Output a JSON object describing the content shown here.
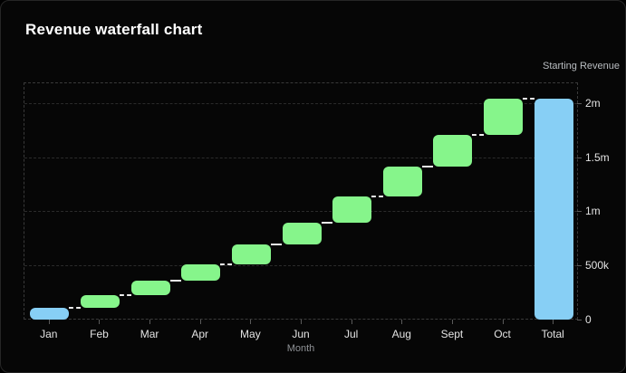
{
  "card": {
    "title": "Revenue waterfall chart"
  },
  "legend": {
    "label": "Starting Revenue"
  },
  "colors": {
    "background": "#060606",
    "card_border": "#262626",
    "increase_green": "#86F58B",
    "start_total_blue": "#87CFF5",
    "connector_white": "#EDEDED",
    "grid_gray": "#2B2B2B",
    "plot_border_gray": "#3A3A3A",
    "axis_text": "#E3E3E3",
    "muted_text": "#8F9296",
    "title_text": "#FFFFFF"
  },
  "chart_data": {
    "type": "waterfall",
    "title": "Revenue waterfall chart",
    "xlabel": "Month",
    "ylabel": "",
    "legend_entries": [
      "Starting Revenue"
    ],
    "legend_position": "top-right",
    "yaxis_side": "right",
    "grid": "horizontal-dashed",
    "categories": [
      "Jan",
      "Feb",
      "Mar",
      "Apr",
      "May",
      "Jun",
      "Jul",
      "Aug",
      "Sept",
      "Oct",
      "Total"
    ],
    "bars": [
      {
        "label": "Jan",
        "start": 0,
        "end": 110000,
        "delta": 110000,
        "kind": "start"
      },
      {
        "label": "Feb",
        "start": 110000,
        "end": 225000,
        "delta": 115000,
        "kind": "increase"
      },
      {
        "label": "Mar",
        "start": 225000,
        "end": 360000,
        "delta": 135000,
        "kind": "increase"
      },
      {
        "label": "Apr",
        "start": 360000,
        "end": 510000,
        "delta": 150000,
        "kind": "increase"
      },
      {
        "label": "May",
        "start": 510000,
        "end": 695000,
        "delta": 185000,
        "kind": "increase"
      },
      {
        "label": "Jun",
        "start": 695000,
        "end": 895000,
        "delta": 200000,
        "kind": "increase"
      },
      {
        "label": "Jul",
        "start": 895000,
        "end": 1135000,
        "delta": 240000,
        "kind": "increase"
      },
      {
        "label": "Aug",
        "start": 1135000,
        "end": 1410000,
        "delta": 275000,
        "kind": "increase"
      },
      {
        "label": "Sept",
        "start": 1410000,
        "end": 1705000,
        "delta": 295000,
        "kind": "increase"
      },
      {
        "label": "Oct",
        "start": 1705000,
        "end": 2040000,
        "delta": 335000,
        "kind": "increase"
      },
      {
        "label": "Total",
        "start": 0,
        "end": 2040000,
        "delta": 2040000,
        "kind": "total"
      }
    ],
    "y_ticks": [
      {
        "value": 0,
        "label": "0"
      },
      {
        "value": 500000,
        "label": "500k"
      },
      {
        "value": 1000000,
        "label": "1m"
      },
      {
        "value": 1500000,
        "label": "1.5m"
      },
      {
        "value": 2000000,
        "label": "2m"
      }
    ],
    "ylim": [
      0,
      2190000
    ]
  }
}
